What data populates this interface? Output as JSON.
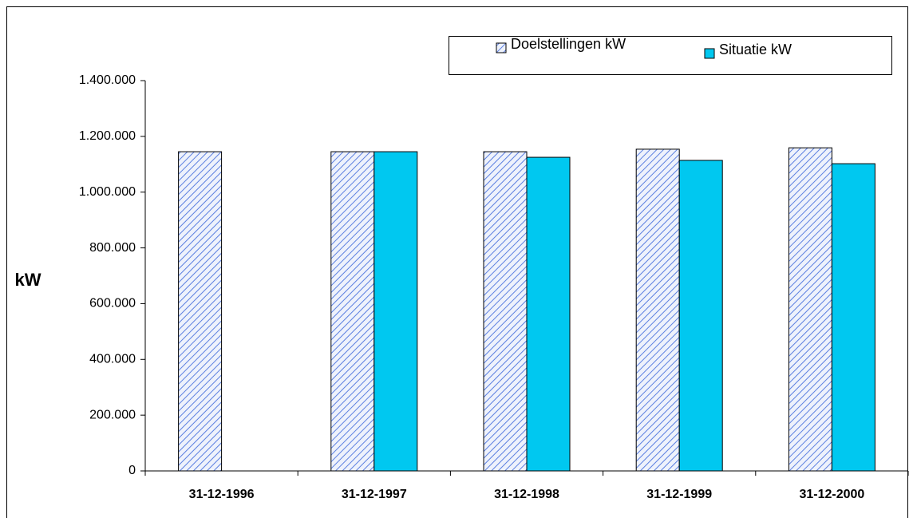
{
  "chart_data": {
    "type": "bar",
    "y_label": "kW",
    "categories": [
      "31-12-1996",
      "31-12-1997",
      "31-12-1998",
      "31-12-1999",
      "31-12-2000"
    ],
    "series": [
      {
        "name": "Doelstellingen kW",
        "color": "#5b7fe0",
        "pattern": "hatch",
        "values": [
          1145000,
          1145000,
          1145000,
          1154000,
          1159000
        ]
      },
      {
        "name": "Situatie kW",
        "color": "#00c8f0",
        "values": [
          null,
          1145000,
          1125000,
          1114000,
          1102000
        ]
      }
    ],
    "ylim": [
      0,
      1400000
    ],
    "yticks": [
      0,
      {
        "value": 200000,
        "label": "200.000"
      },
      {
        "value": 400000,
        "label": "400.000"
      },
      {
        "value": 600000,
        "label": "600.000"
      },
      {
        "value": 800000,
        "label": "800.000"
      },
      {
        "value": 1000000,
        "label": "1.000.000"
      },
      {
        "value": 1200000,
        "label": "1.200.000"
      },
      {
        "value": 1400000,
        "label": "1.400.000"
      }
    ],
    "legend": "top-right"
  }
}
